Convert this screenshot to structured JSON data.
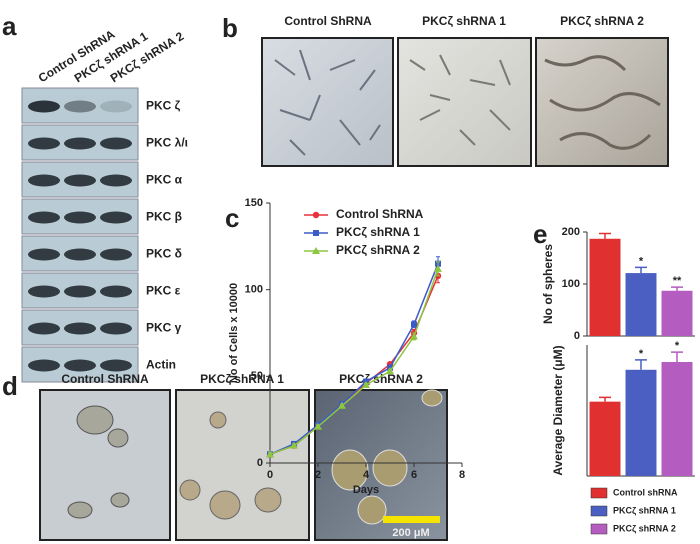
{
  "panel_labels": [
    "a",
    "b",
    "c",
    "d",
    "e"
  ],
  "blot": {
    "columns": [
      "Control ShRNA",
      "PKCζ shRNA 1",
      "PKCζ shRNA 2"
    ],
    "rows": [
      "PKC ζ",
      "PKC λ/ι",
      "PKC α",
      "PKC β",
      "PKC δ",
      "PKC ε",
      "PKC γ",
      "Actin"
    ]
  },
  "morphology": {
    "columns": [
      "Control ShRNA",
      "PKCζ shRNA 1",
      "PKCζ shRNA 2"
    ]
  },
  "spheres": {
    "columns": [
      "Control ShRNA",
      "PKCζ shRNA 1",
      "PKCζ shRNA 2"
    ],
    "scale_bar": "200 μM"
  },
  "chart_data": [
    {
      "type": "line",
      "xlabel": "Days",
      "ylabel": "No of Cells x 10000",
      "x": [
        0,
        1,
        2,
        3,
        4,
        5,
        6,
        7
      ],
      "xlim": [
        0,
        8
      ],
      "xticks": [
        0,
        2,
        4,
        6,
        8
      ],
      "ylim": [
        0,
        150
      ],
      "yticks": [
        0,
        50,
        100,
        150
      ],
      "series": [
        {
          "name": "Control ShRNA",
          "color": "#e8313a",
          "marker": "circle",
          "values": [
            5,
            10,
            21,
            34,
            46,
            57,
            75,
            108
          ],
          "errors": [
            1,
            1,
            1,
            1,
            1,
            1,
            2,
            4
          ]
        },
        {
          "name": "PKCζ shRNA 1",
          "color": "#3b5bc8",
          "marker": "square",
          "values": [
            5,
            11,
            22,
            34,
            47,
            55,
            80,
            115
          ],
          "errors": [
            1,
            1,
            1,
            1,
            1,
            1,
            2,
            4
          ]
        },
        {
          "name": "PKCζ shRNA 2",
          "color": "#8dc63f",
          "marker": "triangle",
          "values": [
            5,
            10,
            21,
            33,
            45,
            53,
            73,
            112
          ],
          "errors": [
            1,
            1,
            1,
            1,
            1,
            1,
            2,
            4
          ]
        }
      ]
    },
    {
      "type": "bar",
      "ylabel": "No of spheres",
      "ylim": [
        0,
        200
      ],
      "yticks": [
        0,
        100,
        200
      ],
      "values": [
        187,
        121,
        87
      ],
      "errors": [
        10,
        11,
        7
      ],
      "colors": [
        "#e03030",
        "#4a5fc1",
        "#b45cbf"
      ],
      "annotations": [
        null,
        "*",
        "**"
      ]
    },
    {
      "type": "bar",
      "ylabel": "Average Diameter (μM)",
      "ylim": [
        0,
        185
      ],
      "values": [
        105,
        150,
        161
      ],
      "errors": [
        6,
        14,
        14
      ],
      "colors": [
        "#e03030",
        "#4a5fc1",
        "#b45cbf"
      ],
      "annotations": [
        null,
        "*",
        "*"
      ],
      "legend": [
        "Control shRNA",
        "PKCζ shRNA 1",
        "PKCζ shRNA 2"
      ]
    }
  ]
}
